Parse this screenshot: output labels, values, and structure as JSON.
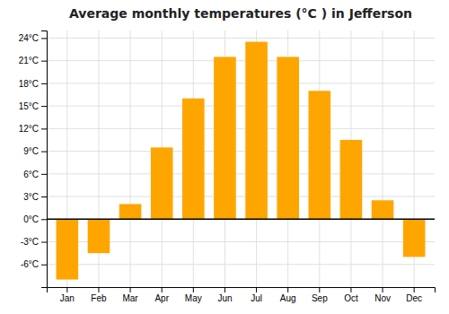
{
  "chart_data": {
    "type": "bar",
    "title": "Average monthly temperatures (°C ) in Jefferson",
    "categories": [
      "Jan",
      "Feb",
      "Mar",
      "Apr",
      "May",
      "Jun",
      "Jul",
      "Aug",
      "Sep",
      "Oct",
      "Nov",
      "Dec"
    ],
    "values": [
      -8,
      -4.5,
      2,
      9.5,
      16,
      21.5,
      23.5,
      21.5,
      17,
      10.5,
      2.5,
      -5
    ],
    "color": "#FFA500",
    "ylim": [
      -9,
      25
    ],
    "yticks": [
      {
        "value": -6,
        "label": "-6°C"
      },
      {
        "value": -3,
        "label": "-3°C"
      },
      {
        "value": 0,
        "label": "0°C"
      },
      {
        "value": 3,
        "label": "3°C"
      },
      {
        "value": 6,
        "label": "6°C"
      },
      {
        "value": 9,
        "label": "9°C"
      },
      {
        "value": 12,
        "label": "12°C"
      },
      {
        "value": 15,
        "label": "15°C"
      },
      {
        "value": 18,
        "label": "18°C"
      },
      {
        "value": 21,
        "label": "21°C"
      },
      {
        "value": 24,
        "label": "24°C"
      }
    ],
    "grid": true
  }
}
